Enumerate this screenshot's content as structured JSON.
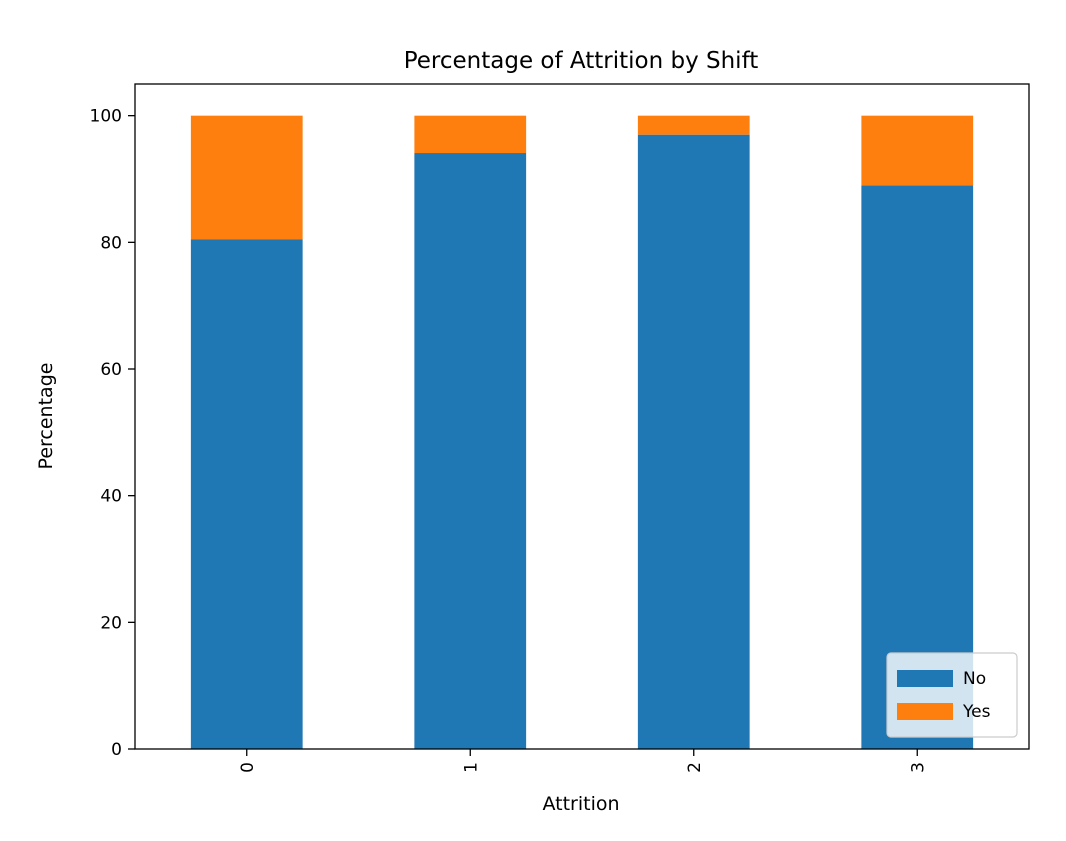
{
  "chart_data": {
    "type": "bar",
    "stacked": true,
    "title": "Percentage of Attrition by Shift",
    "xlabel": "Attrition",
    "ylabel": "Percentage",
    "categories": [
      "0",
      "1",
      "2",
      "3"
    ],
    "series": [
      {
        "name": "No",
        "color": "#1f77b4",
        "values": [
          80.5,
          94.1,
          97.0,
          89.0
        ]
      },
      {
        "name": "Yes",
        "color": "#ff7f0e",
        "values": [
          19.5,
          5.9,
          3.0,
          11.0
        ]
      }
    ],
    "ylim": [
      0,
      105
    ],
    "yticks": [
      0,
      20,
      40,
      60,
      80,
      100
    ],
    "xtick_rotation": 90,
    "grid": false,
    "legend": {
      "placement": "lower-right",
      "entries": [
        "No",
        "Yes"
      ]
    }
  }
}
